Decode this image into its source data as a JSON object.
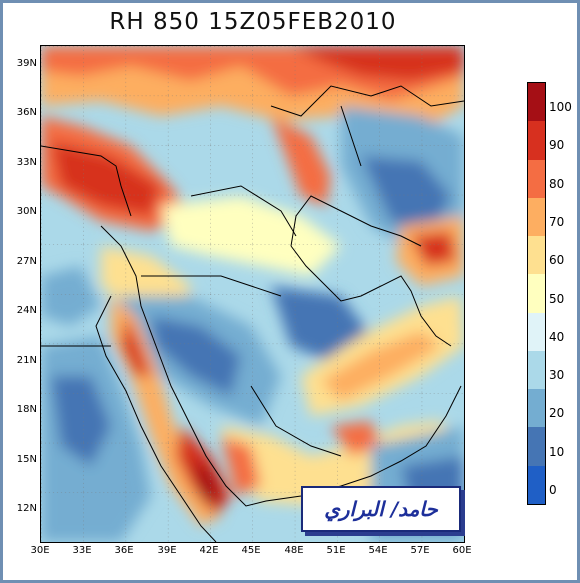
{
  "title": "RH  850  15Z05FEB2010",
  "lat_labels": [
    "39N",
    "36N",
    "33N",
    "30N",
    "27N",
    "24N",
    "21N",
    "18N",
    "15N",
    "12N"
  ],
  "lon_labels": [
    "30E",
    "33E",
    "36E",
    "39E",
    "42E",
    "45E",
    "48E",
    "51E",
    "54E",
    "57E",
    "60E"
  ],
  "colorbar": {
    "labels": [
      "100",
      "90",
      "80",
      "70",
      "60",
      "50",
      "40",
      "30",
      "20",
      "10",
      "0"
    ],
    "colors": [
      "#a50f15",
      "#d7301f",
      "#f46d43",
      "#fdae61",
      "#fee090",
      "#ffffbf",
      "#e0f3f8",
      "#abd9e9",
      "#74add1",
      "#4575b4",
      "#1f5fc6"
    ]
  },
  "signature_text": "حامد/ البراري"
}
